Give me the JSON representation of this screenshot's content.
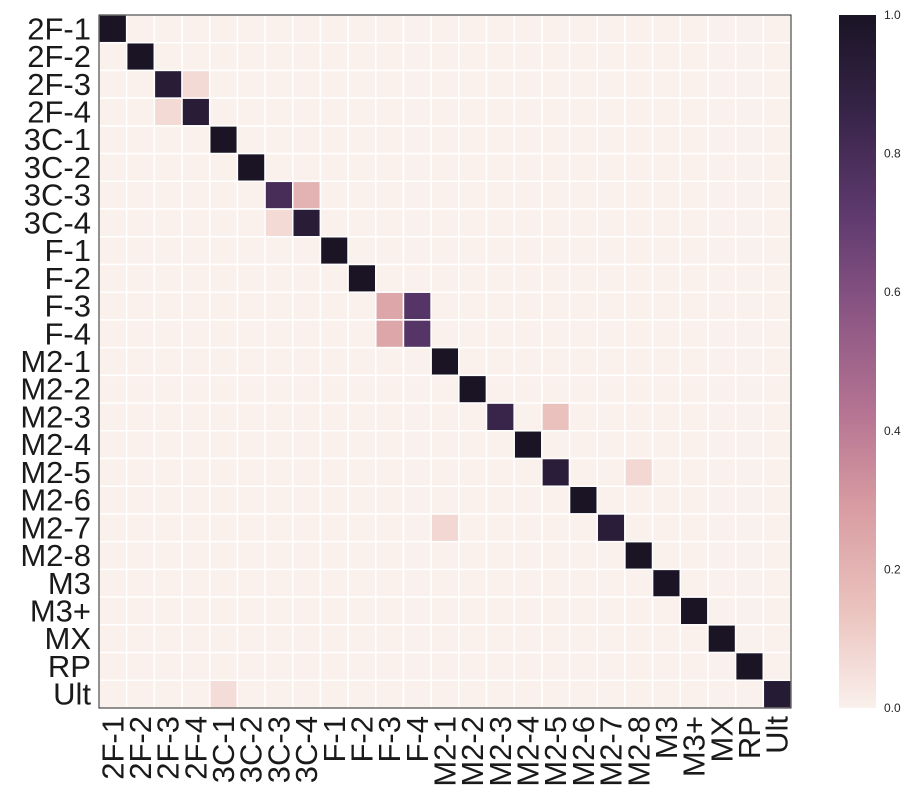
{
  "chart_data": {
    "type": "heatmap",
    "labels": [
      "2F-1",
      "2F-2",
      "2F-3",
      "2F-4",
      "3C-1",
      "3C-2",
      "3C-3",
      "3C-4",
      "F-1",
      "F-2",
      "F-3",
      "F-4",
      "M2-1",
      "M2-2",
      "M2-3",
      "M2-4",
      "M2-5",
      "M2-6",
      "M2-7",
      "M2-8",
      "M3",
      "M3+",
      "MX",
      "RP",
      "Ult"
    ],
    "values": [
      [
        1.0,
        0,
        0,
        0,
        0,
        0,
        0,
        0,
        0,
        0,
        0,
        0,
        0,
        0,
        0,
        0,
        0,
        0,
        0,
        0,
        0,
        0,
        0,
        0,
        0
      ],
      [
        0,
        1.0,
        0,
        0,
        0,
        0,
        0,
        0,
        0,
        0,
        0,
        0,
        0,
        0,
        0,
        0,
        0,
        0,
        0,
        0,
        0,
        0,
        0,
        0,
        0
      ],
      [
        0,
        0,
        0.93,
        0.07,
        0,
        0,
        0,
        0,
        0,
        0,
        0,
        0,
        0,
        0,
        0,
        0,
        0,
        0,
        0,
        0,
        0,
        0,
        0,
        0,
        0
      ],
      [
        0,
        0,
        0.07,
        0.93,
        0,
        0,
        0,
        0,
        0,
        0,
        0,
        0,
        0,
        0,
        0,
        0,
        0,
        0,
        0,
        0,
        0,
        0,
        0,
        0,
        0
      ],
      [
        0,
        0,
        0,
        0,
        1.0,
        0,
        0,
        0,
        0,
        0,
        0,
        0,
        0,
        0,
        0,
        0,
        0,
        0,
        0,
        0,
        0,
        0,
        0,
        0,
        0
      ],
      [
        0,
        0,
        0,
        0,
        0,
        1.0,
        0,
        0,
        0,
        0,
        0,
        0,
        0,
        0,
        0,
        0,
        0,
        0,
        0,
        0,
        0,
        0,
        0,
        0,
        0
      ],
      [
        0,
        0,
        0,
        0,
        0,
        0,
        0.8,
        0.2,
        0,
        0,
        0,
        0,
        0,
        0,
        0,
        0,
        0,
        0,
        0,
        0,
        0,
        0,
        0,
        0,
        0
      ],
      [
        0,
        0,
        0,
        0,
        0,
        0,
        0.07,
        0.93,
        0,
        0,
        0,
        0,
        0,
        0,
        0,
        0,
        0,
        0,
        0,
        0,
        0,
        0,
        0,
        0,
        0
      ],
      [
        0,
        0,
        0,
        0,
        0,
        0,
        0,
        0,
        1.0,
        0,
        0,
        0,
        0,
        0,
        0,
        0,
        0,
        0,
        0,
        0,
        0,
        0,
        0,
        0,
        0
      ],
      [
        0,
        0,
        0,
        0,
        0,
        0,
        0,
        0,
        0,
        1.0,
        0,
        0,
        0,
        0,
        0,
        0,
        0,
        0,
        0,
        0,
        0,
        0,
        0,
        0,
        0
      ],
      [
        0,
        0,
        0,
        0,
        0,
        0,
        0,
        0,
        0,
        0,
        0.25,
        0.75,
        0,
        0,
        0,
        0,
        0,
        0,
        0,
        0,
        0,
        0,
        0,
        0,
        0
      ],
      [
        0,
        0,
        0,
        0,
        0,
        0,
        0,
        0,
        0,
        0,
        0.25,
        0.75,
        0,
        0,
        0,
        0,
        0,
        0,
        0,
        0,
        0,
        0,
        0,
        0,
        0
      ],
      [
        0,
        0,
        0,
        0,
        0,
        0,
        0,
        0,
        0,
        0,
        0,
        0,
        1.0,
        0,
        0,
        0,
        0,
        0,
        0,
        0,
        0,
        0,
        0,
        0,
        0
      ],
      [
        0,
        0,
        0,
        0,
        0,
        0,
        0,
        0,
        0,
        0,
        0,
        0,
        0,
        1.0,
        0,
        0,
        0,
        0,
        0,
        0,
        0,
        0,
        0,
        0,
        0
      ],
      [
        0,
        0,
        0,
        0,
        0,
        0,
        0,
        0,
        0,
        0,
        0,
        0,
        0,
        0,
        0.85,
        0,
        0.15,
        0,
        0,
        0,
        0,
        0,
        0,
        0,
        0
      ],
      [
        0,
        0,
        0,
        0,
        0,
        0,
        0,
        0,
        0,
        0,
        0,
        0,
        0,
        0,
        0,
        1.0,
        0,
        0,
        0,
        0,
        0,
        0,
        0,
        0,
        0
      ],
      [
        0,
        0,
        0,
        0,
        0,
        0,
        0,
        0,
        0,
        0,
        0,
        0,
        0,
        0,
        0,
        0,
        0.92,
        0,
        0,
        0.08,
        0,
        0,
        0,
        0,
        0
      ],
      [
        0,
        0,
        0,
        0,
        0,
        0,
        0,
        0,
        0,
        0,
        0,
        0,
        0,
        0,
        0,
        0,
        0,
        1.0,
        0,
        0,
        0,
        0,
        0,
        0,
        0
      ],
      [
        0,
        0,
        0,
        0,
        0,
        0,
        0,
        0,
        0,
        0,
        0,
        0,
        0.08,
        0,
        0,
        0,
        0,
        0,
        0.92,
        0,
        0,
        0,
        0,
        0,
        0
      ],
      [
        0,
        0,
        0,
        0,
        0,
        0,
        0,
        0,
        0,
        0,
        0,
        0,
        0,
        0,
        0,
        0,
        0,
        0,
        0,
        1.0,
        0,
        0,
        0,
        0,
        0
      ],
      [
        0,
        0,
        0,
        0,
        0,
        0,
        0,
        0,
        0,
        0,
        0,
        0,
        0,
        0,
        0,
        0,
        0,
        0,
        0,
        0,
        1.0,
        0,
        0,
        0,
        0
      ],
      [
        0,
        0,
        0,
        0,
        0,
        0,
        0,
        0,
        0,
        0,
        0,
        0,
        0,
        0,
        0,
        0,
        0,
        0,
        0,
        0,
        0,
        1.0,
        0,
        0,
        0
      ],
      [
        0,
        0,
        0,
        0,
        0,
        0,
        0,
        0,
        0,
        0,
        0,
        0,
        0,
        0,
        0,
        0,
        0,
        0,
        0,
        0,
        0,
        0,
        1.0,
        0,
        0
      ],
      [
        0,
        0,
        0,
        0,
        0,
        0,
        0,
        0,
        0,
        0,
        0,
        0,
        0,
        0,
        0,
        0,
        0,
        0,
        0,
        0,
        0,
        0,
        0,
        1.0,
        0
      ],
      [
        0,
        0,
        0,
        0,
        0.06,
        0,
        0,
        0,
        0,
        0,
        0,
        0,
        0,
        0,
        0,
        0,
        0,
        0,
        0,
        0,
        0,
        0,
        0,
        0,
        0.94
      ]
    ],
    "vmin": 0.0,
    "vmax": 1.0,
    "colorbar_ticks": [
      "0.0",
      "0.2",
      "0.4",
      "0.6",
      "0.8",
      "1.0"
    ],
    "colorbar_tick_values": [
      0.0,
      0.2,
      0.4,
      0.6,
      0.8,
      1.0
    ],
    "colormap": [
      "#faf0ec",
      "#ebc3be",
      "#d89ca2",
      "#b47392",
      "#8c5684",
      "#5f3a6f",
      "#372448",
      "#1a1425"
    ],
    "grid": true,
    "legend": "colorbar-right"
  }
}
